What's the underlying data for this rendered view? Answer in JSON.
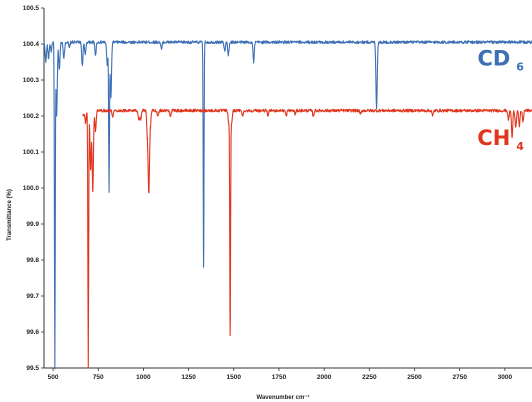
{
  "chart_data": {
    "type": "line",
    "title": "",
    "xlabel": "Wavenumber cm⁻¹",
    "ylabel": "Transmittance (%)",
    "xlim": [
      450,
      3150
    ],
    "ylim": [
      99.5,
      100.5
    ],
    "x_ticks": [
      500,
      750,
      1000,
      1250,
      1500,
      1750,
      2000,
      2250,
      2500,
      2750,
      3000
    ],
    "x_tick_labels": [
      "500",
      "750",
      "1000",
      "1250",
      "1500",
      "1750",
      "2000",
      "2250",
      "2500",
      "2750",
      "3000"
    ],
    "y_ticks": [
      99.5,
      99.6,
      99.7,
      99.8,
      99.9,
      100.0,
      100.1,
      100.2,
      100.3,
      100.4,
      100.5
    ],
    "y_tick_labels": [
      "99.5",
      "99.6",
      "99.7",
      "99.8",
      "99.9",
      "100.0",
      "100.1",
      "100.2",
      "100.3",
      "100.4",
      "100.5"
    ],
    "grid": false,
    "series": [
      {
        "name": "CD",
        "subscript": "6",
        "color": "#3c6fb4",
        "x_start": 450,
        "x_end": 3150,
        "baseline": 100.405,
        "bands": [
          {
            "x": 460,
            "y": 100.35
          },
          {
            "x": 475,
            "y": 100.36
          },
          {
            "x": 490,
            "y": 100.38
          },
          {
            "x": 510,
            "y": 99.5
          },
          {
            "x": 520,
            "y": 100.2
          },
          {
            "x": 535,
            "y": 100.33
          },
          {
            "x": 560,
            "y": 100.36
          },
          {
            "x": 590,
            "y": 100.39
          },
          {
            "x": 662,
            "y": 100.34
          },
          {
            "x": 678,
            "y": 100.37
          },
          {
            "x": 735,
            "y": 100.37
          },
          {
            "x": 800,
            "y": 100.34
          },
          {
            "x": 810,
            "y": 99.99
          },
          {
            "x": 820,
            "y": 100.25
          },
          {
            "x": 1100,
            "y": 100.385
          },
          {
            "x": 1333,
            "y": 99.78
          },
          {
            "x": 1450,
            "y": 100.38
          },
          {
            "x": 1470,
            "y": 100.37
          },
          {
            "x": 1610,
            "y": 100.35
          },
          {
            "x": 2290,
            "y": 100.22
          }
        ],
        "label_x": 3030,
        "label_y": 100.34
      },
      {
        "name": "CH",
        "subscript": "4",
        "color": "#e0361e",
        "x_start": 665,
        "x_end": 3150,
        "baseline": 100.215,
        "bands": [
          {
            "x": 668,
            "y": 100.2
          },
          {
            "x": 680,
            "y": 100.18
          },
          {
            "x": 695,
            "y": 99.5
          },
          {
            "x": 708,
            "y": 100.05
          },
          {
            "x": 720,
            "y": 99.99
          },
          {
            "x": 735,
            "y": 100.16
          },
          {
            "x": 830,
            "y": 100.2
          },
          {
            "x": 975,
            "y": 100.19
          },
          {
            "x": 985,
            "y": 100.19
          },
          {
            "x": 1022,
            "y": 100.14
          },
          {
            "x": 1030,
            "y": 99.99
          },
          {
            "x": 1038,
            "y": 100.17
          },
          {
            "x": 1080,
            "y": 100.2
          },
          {
            "x": 1150,
            "y": 100.2
          },
          {
            "x": 1472,
            "y": 100.18
          },
          {
            "x": 1480,
            "y": 99.59
          },
          {
            "x": 1488,
            "y": 100.18
          },
          {
            "x": 1550,
            "y": 100.2
          },
          {
            "x": 1690,
            "y": 100.2
          },
          {
            "x": 1790,
            "y": 100.2
          },
          {
            "x": 1840,
            "y": 100.205
          },
          {
            "x": 1940,
            "y": 100.2
          },
          {
            "x": 2200,
            "y": 100.205
          },
          {
            "x": 2600,
            "y": 100.2
          },
          {
            "x": 3020,
            "y": 100.19
          },
          {
            "x": 3040,
            "y": 100.14
          },
          {
            "x": 3060,
            "y": 100.17
          },
          {
            "x": 3080,
            "y": 100.17
          },
          {
            "x": 3100,
            "y": 100.185
          }
        ],
        "label_x": 3030,
        "label_y": 100.12
      }
    ]
  }
}
